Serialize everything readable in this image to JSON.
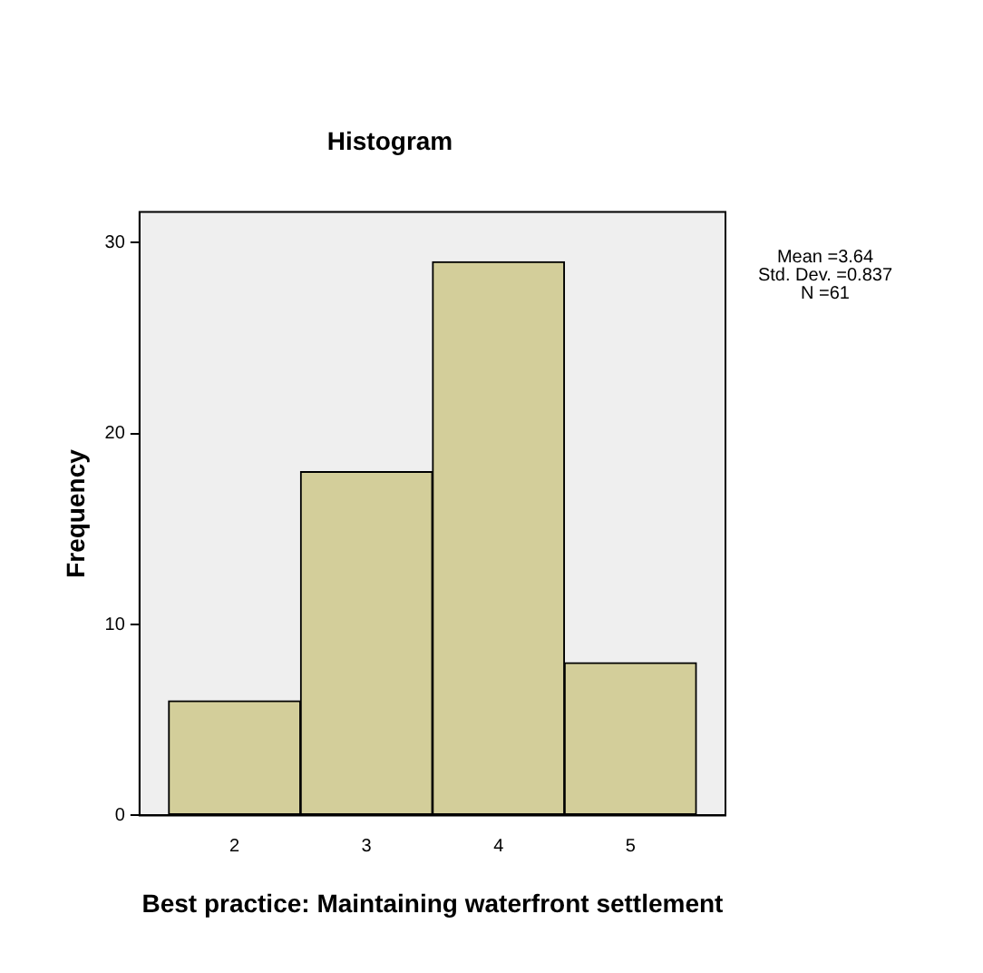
{
  "chart_data": {
    "type": "histogram",
    "title": "Histogram",
    "xlabel": "Best practice: Maintaining waterfront settlement",
    "ylabel": "Frequency",
    "bins": [
      1.5,
      2.5,
      3.5,
      4.5,
      5.5
    ],
    "values": [
      6,
      18,
      29,
      8
    ],
    "color": "#d3ce9a",
    "xlim": [
      1.28,
      5.72
    ],
    "xticks": [
      2,
      3,
      4,
      5
    ],
    "ylim": [
      0,
      31.6
    ],
    "yticks": [
      0,
      10,
      20,
      30
    ],
    "grid": false,
    "legend": false,
    "annotations": [
      "Mean =3.64",
      "Std. Dev. =0.837",
      "N =61"
    ]
  }
}
